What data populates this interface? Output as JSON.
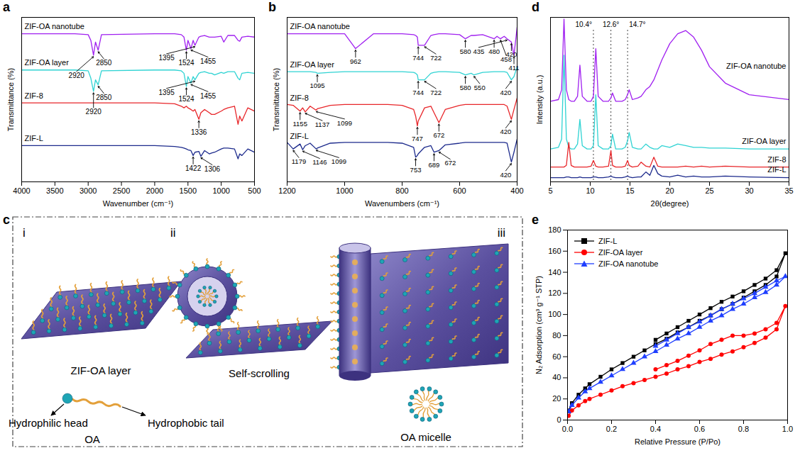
{
  "chart_data": [
    {
      "panel": "a",
      "type": "line",
      "x_label": "Wavenumber (cm⁻¹)",
      "y_label": "Transmittance (%)",
      "xlim": [
        4000,
        500
      ],
      "xticks": [
        4000,
        3500,
        3000,
        2500,
        2000,
        1500,
        1000,
        500
      ],
      "ylim": [
        0,
        100
      ],
      "tick_labels": "x",
      "grid": false,
      "x": [
        4000,
        3500,
        3200,
        3000,
        2960,
        2920,
        2890,
        2850,
        2800,
        2000,
        1700,
        1600,
        1560,
        1524,
        1500,
        1455,
        1422,
        1395,
        1336,
        1306,
        1250,
        1179,
        1146,
        1099,
        1000,
        962,
        900,
        800,
        747,
        722,
        689,
        600,
        500
      ],
      "series": [
        {
          "name": "ZIF-OA nanotube",
          "color": "#a020f0",
          "values": [
            90,
            90,
            90,
            89.5,
            86,
            77,
            85,
            80,
            89.5,
            90,
            90,
            89.5,
            88,
            80,
            86,
            81,
            86,
            83,
            88,
            88.5,
            89,
            88,
            88,
            88,
            88.5,
            85,
            89,
            89,
            86,
            85.5,
            88,
            88.5,
            88
          ],
          "peaks": [
            2920,
            2850,
            1524,
            1455,
            1395
          ]
        },
        {
          "name": "ZIF-OA layer",
          "color": "#2fd3d3",
          "values": [
            68,
            68,
            68,
            67.5,
            63,
            55,
            62,
            59,
            67.5,
            68,
            68,
            67.5,
            66,
            58,
            64,
            60,
            64,
            62,
            66,
            66.5,
            67,
            66,
            66,
            65,
            66.5,
            66,
            67,
            67,
            63,
            62,
            66,
            66.5,
            66
          ],
          "peaks": [
            2920,
            2850,
            1524,
            1455,
            1395
          ]
        },
        {
          "name": "ZIF-8",
          "color": "#e8262a",
          "values": [
            48,
            48,
            48,
            48,
            48,
            48,
            48,
            48,
            48,
            48,
            47.5,
            46,
            45,
            46,
            45,
            44,
            43,
            44,
            38,
            42,
            44,
            42,
            41,
            41,
            43,
            44,
            45,
            46,
            35,
            40,
            37,
            45,
            43
          ],
          "peaks": [
            1336
          ]
        },
        {
          "name": "ZIF-L",
          "color": "#1c2a8c",
          "values": [
            22,
            22,
            22,
            22,
            22,
            22,
            22,
            22,
            22,
            22,
            21.5,
            21,
            20.5,
            20,
            19.5,
            19,
            16,
            18,
            18.5,
            15.5,
            19,
            17,
            17.5,
            18,
            20,
            20.5,
            20.5,
            20,
            14,
            17,
            16,
            20,
            18
          ],
          "peaks": [
            1422,
            1306
          ]
        }
      ]
    },
    {
      "panel": "b",
      "type": "line",
      "x_label": "Wavenumbers (cm⁻¹)",
      "y_label": "Transmittance (%)",
      "xlim": [
        1200,
        400
      ],
      "xticks": [
        1200,
        1000,
        800,
        600,
        400
      ],
      "ylim": [
        0,
        100
      ],
      "tick_labels": "x",
      "grid": false,
      "x": [
        1200,
        1179,
        1155,
        1146,
        1137,
        1120,
        1099,
        1095,
        1050,
        1000,
        962,
        900,
        850,
        800,
        760,
        753,
        747,
        744,
        722,
        700,
        689,
        672,
        650,
        600,
        580,
        560,
        550,
        520,
        480,
        470,
        458,
        445,
        435,
        420,
        411,
        400
      ],
      "series": [
        {
          "name": "ZIF-OA nanotube",
          "color": "#a020f0",
          "values": [
            90,
            90,
            90,
            90,
            90,
            90,
            90,
            90,
            90,
            90,
            81,
            90,
            90,
            90,
            89.5,
            89,
            88,
            83,
            83,
            89,
            89.5,
            90,
            90,
            89.5,
            87,
            89,
            89,
            89.5,
            87,
            88.5,
            87,
            88.5,
            87,
            85,
            77,
            94
          ],
          "peaks": [
            962,
            744,
            722,
            580,
            480,
            458,
            435,
            420,
            411
          ]
        },
        {
          "name": "ZIF-OA layer",
          "color": "#2fd3d3",
          "values": [
            67,
            67,
            67,
            67,
            67,
            67,
            66.5,
            66,
            66.5,
            67,
            67,
            67,
            67,
            67,
            66.5,
            66,
            65,
            62,
            62,
            66,
            66.5,
            67,
            67,
            66.5,
            65,
            66,
            65,
            66.5,
            67,
            67,
            67,
            67,
            66.5,
            62,
            64,
            70
          ],
          "peaks": [
            1095,
            744,
            722,
            580,
            550,
            420
          ]
        },
        {
          "name": "ZIF-8",
          "color": "#e8262a",
          "values": [
            47,
            46.5,
            43,
            45,
            42.5,
            46,
            43.5,
            44.5,
            46.5,
            47,
            47,
            47,
            47,
            46.5,
            44,
            40,
            34,
            37,
            45,
            46,
            42,
            36,
            44,
            46.5,
            47,
            47,
            47,
            47,
            47,
            47,
            47,
            47,
            46,
            38,
            44,
            51
          ],
          "peaks": [
            1155,
            1137,
            1099,
            747,
            672,
            420
          ]
        },
        {
          "name": "ZIF-L",
          "color": "#1c2a8c",
          "values": [
            24,
            20,
            23,
            19.5,
            22,
            23.5,
            20,
            20.5,
            23.5,
            24,
            24,
            24,
            24,
            23.5,
            21,
            15,
            16,
            17,
            21,
            22,
            18,
            19,
            22.5,
            23.5,
            24,
            24,
            24,
            24,
            24,
            24,
            24,
            24,
            23.5,
            12,
            18,
            26
          ],
          "peaks": [
            1179,
            1146,
            1099,
            753,
            689,
            672,
            420
          ]
        }
      ]
    },
    {
      "panel": "d",
      "type": "line",
      "x_label": "2θ(degree)",
      "y_label": "Intensity (a.u.)",
      "xlim": [
        5,
        35
      ],
      "xticks": [
        5,
        10,
        15,
        20,
        25,
        30,
        35
      ],
      "ylim": [
        0,
        100
      ],
      "tick_labels": "x",
      "grid": false,
      "reference_lines": [
        {
          "value": 10.4,
          "label": "10.4°"
        },
        {
          "value": 12.6,
          "label": "12.6°"
        },
        {
          "value": 14.7,
          "label": "14.7°"
        }
      ],
      "x": [
        5,
        6,
        6.4,
        6.7,
        7,
        7.3,
        7.6,
        8,
        8.4,
        8.7,
        9,
        9.6,
        10.1,
        10.4,
        10.7,
        11,
        11.6,
        12.3,
        12.6,
        12.8,
        13.2,
        14,
        14.4,
        14.7,
        14.9,
        15.3,
        16,
        16.4,
        17,
        17.5,
        18,
        18.5,
        19,
        20,
        21,
        22,
        23,
        24,
        25,
        27,
        30,
        35
      ],
      "series": [
        {
          "name": "ZIF-OA nanotube",
          "color": "#a020f0",
          "values": [
            49,
            50,
            56,
            99,
            56,
            50,
            49,
            49,
            52,
            71,
            52,
            49,
            49,
            52,
            81,
            52,
            49,
            49,
            51,
            54,
            49,
            49,
            50,
            53,
            56,
            50,
            51,
            52,
            56,
            58,
            62,
            68,
            74,
            84,
            90,
            92,
            88,
            80,
            70,
            60,
            53,
            50
          ]
        },
        {
          "name": "ZIF-OA layer",
          "color": "#2fd3d3",
          "values": [
            20,
            21,
            26,
            77,
            26,
            21,
            20,
            20,
            23,
            38,
            22,
            20,
            20,
            22,
            53,
            22,
            20,
            20,
            22,
            29,
            20,
            20,
            21,
            25,
            30,
            21,
            20,
            20,
            23,
            21,
            20,
            20,
            22,
            21,
            23,
            22,
            21,
            21,
            20.5,
            20.5,
            20,
            20
          ]
        },
        {
          "name": "ZIF-8",
          "color": "#e8262a",
          "values": [
            9,
            9,
            9,
            9,
            10,
            24,
            10,
            9,
            9,
            9,
            9,
            9,
            9.5,
            13,
            9.5,
            9,
            9,
            9.5,
            19,
            10,
            9,
            9,
            9.5,
            13,
            10,
            9,
            9.5,
            12,
            9.5,
            9,
            15,
            9.5,
            9,
            9,
            9,
            9.5,
            9,
            9.5,
            9,
            9.5,
            9,
            9
          ]
        },
        {
          "name": "ZIF-L",
          "color": "#1c2a8c",
          "values": [
            2.5,
            2.5,
            2.5,
            2.5,
            3,
            3,
            2.5,
            2.5,
            2.5,
            3,
            2.5,
            2.5,
            2.5,
            3,
            3,
            2.5,
            2.5,
            3,
            3.5,
            3,
            2.5,
            2.5,
            3,
            3.5,
            3,
            2.5,
            3,
            3,
            6,
            4,
            10,
            5,
            3.5,
            3,
            4,
            3,
            3.5,
            3,
            3,
            3.5,
            3,
            2.5
          ]
        }
      ]
    },
    {
      "panel": "e",
      "type": "line",
      "x_label": "Relative Pressure (P/Po)",
      "y_label": "N₂ Adsorption (cm³ g⁻¹ STP)",
      "xlim": [
        0,
        1
      ],
      "xticks": [
        {
          "value": 0,
          "label": "0.0"
        },
        0.2,
        0.4,
        0.6,
        0.8,
        {
          "value": 1,
          "label": "1.0"
        }
      ],
      "ylim": [
        0,
        180
      ],
      "yticks": [
        0,
        20,
        40,
        60,
        80,
        100,
        120,
        140,
        160,
        180
      ],
      "grid": false,
      "legend": "top-left",
      "series": [
        {
          "name": "ZIF-L",
          "color": "#000000",
          "marker": "square",
          "x": [
            0.005,
            0.02,
            0.05,
            0.08,
            0.1,
            0.15,
            0.2,
            0.25,
            0.3,
            0.35,
            0.4,
            0.45,
            0.5,
            0.55,
            0.6,
            0.65,
            0.7,
            0.75,
            0.8,
            0.85,
            0.9,
            0.95,
            0.99,
            0.95,
            0.9,
            0.85,
            0.8,
            0.75,
            0.7,
            0.65,
            0.6,
            0.55,
            0.5,
            0.45,
            0.4
          ],
          "values": [
            9,
            16,
            24,
            30,
            34,
            41,
            48,
            54,
            60,
            66,
            72,
            77,
            83,
            88,
            94,
            99,
            105,
            110,
            116,
            122,
            128,
            136,
            158,
            142,
            134,
            128,
            122,
            117,
            112,
            106,
            100,
            94,
            88,
            82,
            76
          ]
        },
        {
          "name": "ZIF-OA layer",
          "color": "#ff0000",
          "marker": "circle",
          "x": [
            0.005,
            0.02,
            0.05,
            0.08,
            0.1,
            0.15,
            0.2,
            0.25,
            0.3,
            0.35,
            0.4,
            0.45,
            0.5,
            0.55,
            0.6,
            0.65,
            0.7,
            0.75,
            0.8,
            0.85,
            0.9,
            0.95,
            0.99,
            0.95,
            0.9,
            0.85,
            0.8,
            0.75,
            0.7,
            0.65,
            0.6,
            0.55,
            0.5,
            0.45,
            0.4
          ],
          "values": [
            4,
            9,
            14,
            18,
            20,
            24,
            28,
            32,
            35,
            38,
            41,
            44,
            48,
            51,
            55,
            58,
            62,
            65,
            69,
            73,
            78,
            86,
            108,
            92,
            86,
            82,
            80,
            80,
            76,
            72,
            66,
            61,
            56,
            52,
            48
          ]
        },
        {
          "name": "ZIF-OA nanotube",
          "color": "#1f3fff",
          "marker": "triangle",
          "x": [
            0.005,
            0.02,
            0.05,
            0.08,
            0.1,
            0.15,
            0.2,
            0.25,
            0.3,
            0.35,
            0.4,
            0.45,
            0.5,
            0.55,
            0.6,
            0.65,
            0.7,
            0.75,
            0.8,
            0.85,
            0.9,
            0.95,
            0.99,
            0.95,
            0.9,
            0.85,
            0.8,
            0.75,
            0.7,
            0.65,
            0.6,
            0.55,
            0.5,
            0.45,
            0.4
          ],
          "values": [
            8,
            14,
            21,
            27,
            30,
            36,
            42,
            48,
            54,
            60,
            65,
            71,
            77,
            82,
            88,
            94,
            99,
            105,
            110,
            116,
            121,
            128,
            136,
            132,
            126,
            120,
            115,
            110,
            105,
            99,
            93,
            88,
            82,
            76,
            70
          ]
        }
      ]
    }
  ],
  "diagram": {
    "panel": "c",
    "steps": [
      {
        "label": "i",
        "title": "ZIF-OA layer"
      },
      {
        "label": "ii",
        "title": "Self-scrolling"
      },
      {
        "label": "iii"
      }
    ],
    "molecule": {
      "name": "OA",
      "head": "Hydrophilic head",
      "tail": "Hydrophobic tail"
    },
    "micelle": "OA micelle"
  }
}
